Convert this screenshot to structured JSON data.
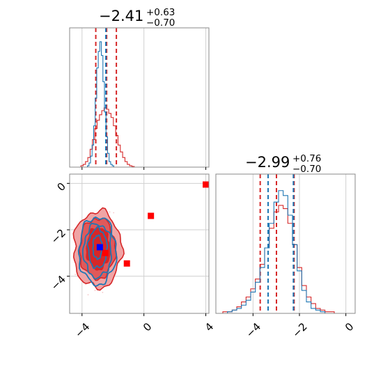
{
  "colors": {
    "series_red": "#d62728",
    "series_blue": "#1f77b4",
    "red_fill_outer": "#f0a4a5",
    "red_fill_mid": "#e0595a",
    "red_fill_inner": "#d62728",
    "marker_blue": "#0000ff",
    "marker_red": "#ff0000",
    "grid": "#d0d0d0",
    "frame": "#888888"
  },
  "chart_data": [
    {
      "type": "histogram",
      "panel": "marginal-param-1",
      "title": {
        "median": "−2.41",
        "plus": "+0.63",
        "minus": "−0.70"
      },
      "xlim": [
        -4.8,
        4.2
      ],
      "grid": true,
      "x_ticks": [
        -4,
        0,
        4
      ],
      "series": [
        {
          "color": "red",
          "bin_centers": [
            -4.0,
            -3.85,
            -3.7,
            -3.55,
            -3.4,
            -3.25,
            -3.1,
            -2.95,
            -2.8,
            -2.65,
            -2.5,
            -2.35,
            -2.2,
            -2.05,
            -1.9,
            -1.75,
            -1.6,
            -1.45,
            -1.3,
            -1.15,
            -1.0,
            -0.85,
            -0.7
          ],
          "counts": [
            0.01,
            0.02,
            0.04,
            0.07,
            0.13,
            0.2,
            0.28,
            0.34,
            0.38,
            0.41,
            0.43,
            0.42,
            0.39,
            0.36,
            0.3,
            0.23,
            0.16,
            0.11,
            0.07,
            0.04,
            0.02,
            0.01,
            0.005
          ],
          "quantiles": [
            -3.11,
            -2.41,
            -1.78
          ]
        },
        {
          "color": "blue",
          "bin_centers": [
            -3.6,
            -3.5,
            -3.4,
            -3.3,
            -3.2,
            -3.1,
            -3.0,
            -2.9,
            -2.8,
            -2.7,
            -2.6,
            -2.5,
            -2.4,
            -2.3,
            -2.2,
            -2.1,
            -2.0
          ],
          "counts": [
            0.01,
            0.03,
            0.08,
            0.16,
            0.3,
            0.5,
            0.72,
            0.84,
            0.91,
            0.81,
            0.62,
            0.4,
            0.22,
            0.1,
            0.04,
            0.02,
            0.01
          ],
          "quantiles": [
            -2.46
          ]
        }
      ]
    },
    {
      "type": "histogram",
      "panel": "marginal-param-2",
      "title": {
        "median": "−2.99",
        "plus": "+0.76",
        "minus": "−0.70"
      },
      "xlim": [
        -5.6,
        0.4
      ],
      "grid": true,
      "x_ticks": [
        -4,
        -2,
        0
      ],
      "series": [
        {
          "color": "red",
          "bin_centers": [
            -5.4,
            -5.2,
            -5.0,
            -4.8,
            -4.6,
            -4.4,
            -4.2,
            -4.0,
            -3.8,
            -3.6,
            -3.4,
            -3.2,
            -3.0,
            -2.8,
            -2.6,
            -2.4,
            -2.2,
            -2.0,
            -1.8,
            -1.6,
            -1.4,
            -1.2,
            -1.0,
            -0.8,
            -0.6
          ],
          "counts": [
            0.0,
            0.01,
            0.01,
            0.02,
            0.04,
            0.07,
            0.1,
            0.15,
            0.21,
            0.3,
            0.4,
            0.52,
            0.62,
            0.66,
            0.64,
            0.55,
            0.42,
            0.28,
            0.17,
            0.1,
            0.06,
            0.03,
            0.02,
            0.01,
            0.01
          ],
          "quantiles": [
            -3.69,
            -2.99,
            -2.23
          ]
        },
        {
          "color": "blue",
          "bin_centers": [
            -5.2,
            -5.0,
            -4.8,
            -4.6,
            -4.4,
            -4.2,
            -4.0,
            -3.8,
            -3.6,
            -3.4,
            -3.2,
            -3.0,
            -2.8,
            -2.6,
            -2.4,
            -2.2,
            -2.0,
            -1.8,
            -1.6,
            -1.4,
            -1.2,
            -1.0,
            -0.8
          ],
          "counts": [
            0.0,
            0.01,
            0.02,
            0.03,
            0.05,
            0.08,
            0.13,
            0.19,
            0.28,
            0.4,
            0.55,
            0.68,
            0.75,
            0.72,
            0.6,
            0.42,
            0.26,
            0.14,
            0.07,
            0.03,
            0.02,
            0.01,
            0.0
          ],
          "quantiles": [
            -3.35,
            -2.26
          ]
        }
      ]
    },
    {
      "type": "contour",
      "panel": "joint",
      "xlim": [
        -4.8,
        4.2
      ],
      "ylim": [
        -5.6,
        0.4
      ],
      "x_ticks": [
        -4,
        0,
        4
      ],
      "y_ticks": [
        0,
        -2,
        -4
      ],
      "grid": true,
      "red_contours": [
        {
          "level": "outer",
          "cx": -3.0,
          "cy": -2.85,
          "rx": 1.55,
          "ry": 1.65
        },
        {
          "level": "mid",
          "cx": -3.0,
          "cy": -2.8,
          "rx": 1.15,
          "ry": 1.3
        },
        {
          "level": "inner",
          "cx": -2.95,
          "cy": -2.8,
          "rx": 0.75,
          "ry": 0.9
        }
      ],
      "blue_contours": [
        {
          "cx": -3.0,
          "cy": -2.9,
          "rx": 1.2,
          "ry": 1.45
        },
        {
          "cx": -3.0,
          "cy": -2.9,
          "rx": 0.9,
          "ry": 1.15
        },
        {
          "cx": -3.0,
          "cy": -2.8,
          "rx": 0.6,
          "ry": 0.85
        },
        {
          "cx": -3.0,
          "cy": -2.75,
          "rx": 0.3,
          "ry": 0.5
        }
      ],
      "red_markers": [
        {
          "x": 4.0,
          "y": -0.05
        },
        {
          "x": 0.45,
          "y": -1.4
        },
        {
          "x": -1.1,
          "y": -3.45
        },
        {
          "x": -2.5,
          "y": -3.0
        }
      ],
      "blue_markers": [
        {
          "x": -2.85,
          "y": -2.75
        }
      ]
    }
  ]
}
